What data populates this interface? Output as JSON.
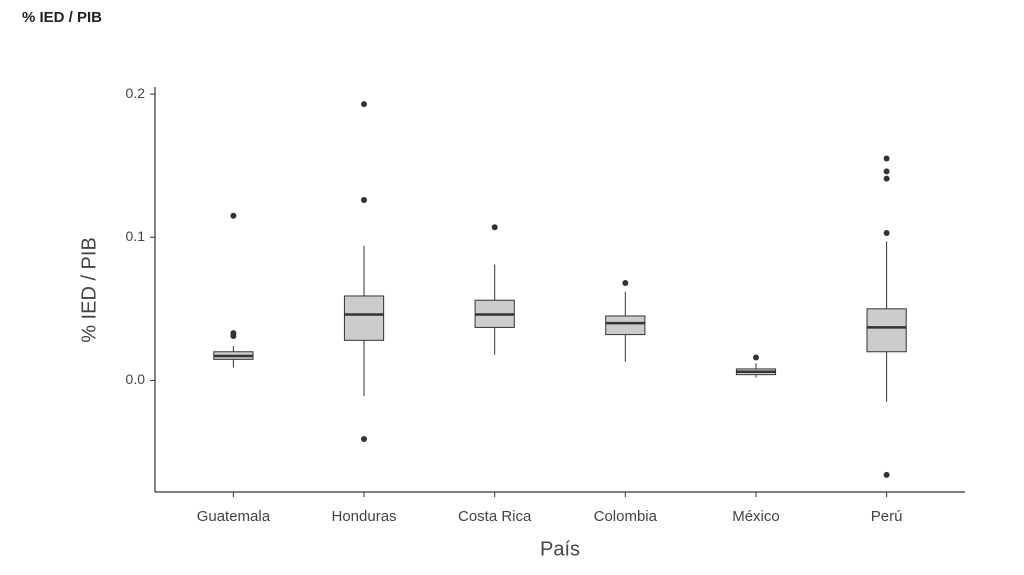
{
  "chart_data": {
    "type": "box",
    "title": "% IED / PIB",
    "x_label": "País",
    "y_label": "% IED / PIB",
    "categories": [
      "Guatemala",
      "Honduras",
      "Costa Rica",
      "Colombia",
      "México",
      "Perú"
    ],
    "color": "#cccccc",
    "boxes": [
      {
        "min": 0.009,
        "q1": 0.0147,
        "median": 0.017,
        "q3": 0.02,
        "max": 0.024,
        "outliers": [
          0.115,
          0.033,
          0.031
        ]
      },
      {
        "min": -0.011,
        "q1": 0.028,
        "median": 0.046,
        "q3": 0.059,
        "max": 0.094,
        "outliers": [
          0.193,
          0.126,
          -0.041
        ]
      },
      {
        "min": 0.018,
        "q1": 0.037,
        "median": 0.046,
        "q3": 0.056,
        "max": 0.081,
        "outliers": [
          0.107
        ]
      },
      {
        "min": 0.013,
        "q1": 0.032,
        "median": 0.04,
        "q3": 0.045,
        "max": 0.062,
        "outliers": [
          0.068
        ]
      },
      {
        "min": 0.002,
        "q1": 0.004,
        "median": 0.006,
        "q3": 0.008,
        "max": 0.012,
        "outliers": [
          0.016
        ]
      },
      {
        "min": -0.015,
        "q1": 0.02,
        "median": 0.037,
        "q3": 0.05,
        "max": 0.097,
        "outliers": [
          0.155,
          0.146,
          0.141,
          0.103,
          -0.066
        ]
      }
    ],
    "ylim": [
      -0.078,
      0.205
    ],
    "yticks": [
      {
        "value": 0,
        "label": "0.0"
      },
      0.1,
      0.2
    ]
  }
}
